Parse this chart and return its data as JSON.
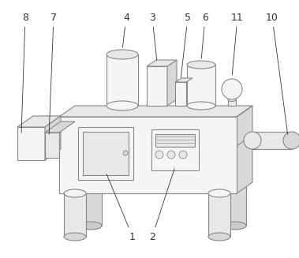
{
  "bg_color": "#ffffff",
  "line_color": "#888888",
  "fill_light": "#f5f5f5",
  "fill_mid": "#e8e8e8",
  "fill_dark": "#d8d8d8",
  "figsize": [
    3.79,
    3.27
  ],
  "dpi": 100,
  "label_fs": 9,
  "label_color": "#333333"
}
